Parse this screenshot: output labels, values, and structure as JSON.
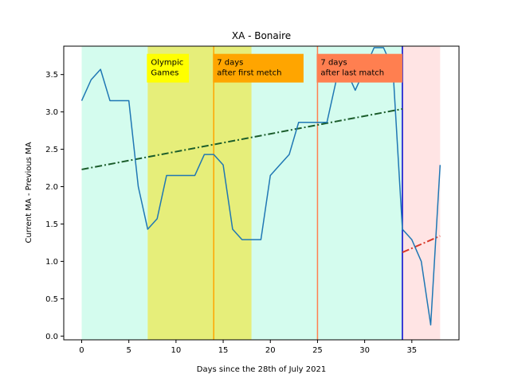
{
  "chart_data": {
    "type": "line",
    "title": "XA - Bonaire",
    "xlabel": "Days since the 28th of July 2021",
    "ylabel": "Current MA - Previous MA",
    "xlim": [
      -1.9,
      40.0
    ],
    "ylim": [
      -0.05,
      3.88
    ],
    "xticks": [
      0,
      5,
      10,
      15,
      20,
      25,
      30,
      35
    ],
    "yticks": [
      0.0,
      0.5,
      1.0,
      1.5,
      2.0,
      2.5,
      3.0,
      3.5
    ],
    "grid": false,
    "series": [
      {
        "color": "#1f77b4",
        "x": [
          0,
          1,
          2,
          3,
          4,
          5,
          6,
          7,
          8,
          9,
          10,
          11,
          12,
          13,
          14,
          15,
          16,
          17,
          18,
          19,
          20,
          21,
          22,
          23,
          24,
          25,
          26,
          27,
          28,
          29,
          30,
          31,
          32,
          33,
          34,
          35,
          36,
          37,
          38
        ],
        "y": [
          3.15,
          3.43,
          3.57,
          3.15,
          3.15,
          3.15,
          2.0,
          1.43,
          1.57,
          2.15,
          2.15,
          2.15,
          2.15,
          2.43,
          2.43,
          2.29,
          1.43,
          1.29,
          1.29,
          1.29,
          2.15,
          2.29,
          2.43,
          2.86,
          2.86,
          2.86,
          2.86,
          3.43,
          3.57,
          3.29,
          3.57,
          3.86,
          3.86,
          3.57,
          1.43,
          1.29,
          1.0,
          0.15,
          2.29
        ]
      }
    ],
    "trend_lines": [
      {
        "color": "#1a5c2a",
        "style": "dash-dot",
        "x": [
          0,
          34
        ],
        "y": [
          2.23,
          3.04
        ]
      },
      {
        "color": "#d93a2b",
        "style": "dash-dot",
        "x": [
          34,
          38
        ],
        "y": [
          1.12,
          1.34
        ]
      }
    ],
    "shaded_regions": [
      {
        "x": [
          0,
          34
        ],
        "color": "#d4fcee"
      },
      {
        "x": [
          7,
          18
        ],
        "color": "#e6ee7a"
      },
      {
        "x": [
          34,
          38
        ],
        "color": "#ffe4e4"
      }
    ],
    "vertical_lines": [
      {
        "x": 14,
        "color": "#ffa500"
      },
      {
        "x": 25,
        "color": "#ff7f50"
      },
      {
        "x": 34,
        "color": "#0000cd"
      }
    ],
    "annotations": [
      {
        "x": 7,
        "y": 3.5,
        "lines": [
          "Olympic",
          "Games"
        ],
        "bg": "#ffff00"
      },
      {
        "x": 14,
        "y": 3.5,
        "lines": [
          "7 days",
          "after first metch"
        ],
        "bg": "#ffa500"
      },
      {
        "x": 25,
        "y": 3.5,
        "lines": [
          "7 days",
          "after last match"
        ],
        "bg": "#ff7f50"
      }
    ]
  }
}
